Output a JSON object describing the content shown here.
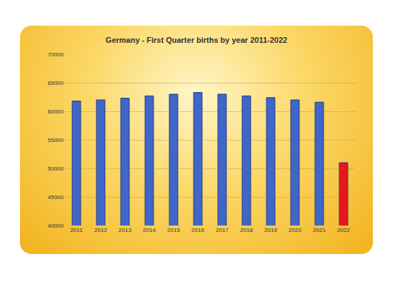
{
  "chart_data": {
    "type": "bar",
    "title": "Germany - First Quarter births by year 2011-2022",
    "categories": [
      "2011",
      "2012",
      "2013",
      "2014",
      "2015",
      "2016",
      "2017",
      "2018",
      "2019",
      "2020",
      "2021",
      "2022"
    ],
    "values": [
      61800,
      62000,
      62300,
      62700,
      63000,
      63300,
      63000,
      62700,
      62400,
      62000,
      61600,
      51000
    ],
    "colors": [
      "#3f66c8",
      "#3f66c8",
      "#3f66c8",
      "#3f66c8",
      "#3f66c8",
      "#3f66c8",
      "#3f66c8",
      "#3f66c8",
      "#3f66c8",
      "#3f66c8",
      "#3f66c8",
      "#e8161b"
    ],
    "ylim": [
      40000,
      70000
    ],
    "yticks": [
      40000,
      45000,
      50000,
      55000,
      60000,
      65000,
      70000
    ],
    "grid": true
  }
}
